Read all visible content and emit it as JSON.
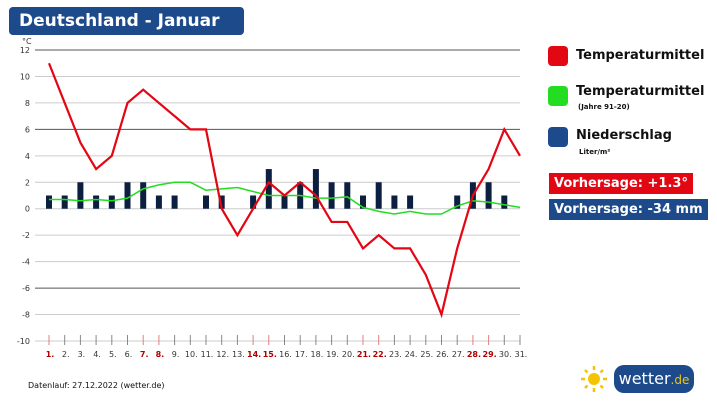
{
  "title": "Deutschland - Januar",
  "legend": [
    {
      "label": "Temperaturmittel",
      "color": "#e30613"
    },
    {
      "label": "Temperaturmittel",
      "sub": "(Jahre 91-20)",
      "color": "#22dd22"
    },
    {
      "label": "Niederschlag",
      "sub": "Liter/m²",
      "color": "#1d4a8a"
    }
  ],
  "forecast_temp": "Vorhersage: +1.3°",
  "forecast_rain": "Vorhersage: -34 mm",
  "footer": "Datenlauf: 27.12.2022 (wetter.de)",
  "logo": {
    "main": "wetter",
    "suffix": ".de"
  },
  "chart_data": {
    "type": "line",
    "ylabel": "°C",
    "ylim": [
      -10,
      12
    ],
    "yticks": [
      12,
      10,
      8,
      6,
      4,
      2,
      0,
      -2,
      -4,
      -6,
      -8,
      -10
    ],
    "categories": [
      "1.",
      "2.",
      "3.",
      "4.",
      "5.",
      "6.",
      "7.",
      "8.",
      "9.",
      "10.",
      "11.",
      "12.",
      "13.",
      "14.",
      "15.",
      "16.",
      "17.",
      "18.",
      "19.",
      "20.",
      "21.",
      "22.",
      "23.",
      "24.",
      "25.",
      "26.",
      "27.",
      "28.",
      "29.",
      "30.",
      "31."
    ],
    "weekend_days": [
      1,
      7,
      8,
      14,
      15,
      21,
      22,
      28,
      29
    ],
    "series": [
      {
        "name": "Temperaturmittel",
        "type": "line",
        "color": "#e30613",
        "values": [
          11,
          8,
          5,
          3,
          4,
          8,
          9,
          8,
          7,
          6,
          6,
          0,
          -2,
          0,
          2,
          1,
          2,
          1,
          -1,
          -1,
          -3,
          -2,
          -3,
          -3,
          -5,
          -8,
          -3,
          1,
          3,
          6,
          4
        ]
      },
      {
        "name": "Temperaturmittel (Jahre 91-20)",
        "type": "line",
        "color": "#22dd22",
        "values": [
          0.7,
          0.7,
          0.6,
          0.7,
          0.6,
          0.8,
          1.5,
          1.8,
          2,
          2,
          1.4,
          1.5,
          1.6,
          1.3,
          1,
          1,
          1,
          0.8,
          0.8,
          0.9,
          0.1,
          -0.2,
          -0.4,
          -0.2,
          -0.4,
          -0.4,
          0.2,
          0.6,
          0.5,
          0.3,
          0.1
        ]
      },
      {
        "name": "Niederschlag",
        "type": "bar",
        "color": "#0d1f40",
        "values": [
          1,
          1,
          2,
          1,
          1,
          2,
          2,
          1,
          1,
          0,
          1,
          1,
          0,
          1,
          3,
          1,
          2,
          3,
          2,
          2,
          1,
          2,
          1,
          1,
          0,
          0,
          1,
          2,
          2,
          1,
          0
        ]
      }
    ]
  }
}
